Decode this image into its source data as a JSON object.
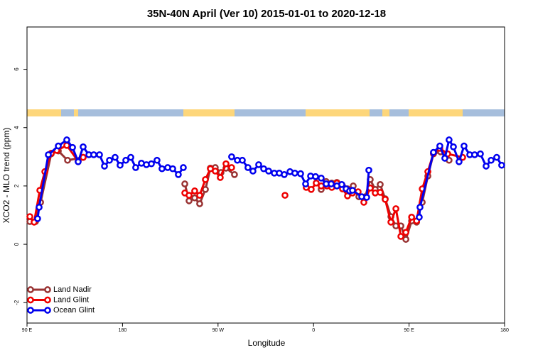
{
  "chart_data": {
    "type": "line",
    "title": "35N-40N April (Ver 10)   2015-01-01 to 2020-12-18",
    "x_label": "Longitude",
    "y_label": "XCO2 - MLO trend (ppm)",
    "xlim": [
      90,
      540
    ],
    "ylim": [
      -2.7,
      7.45
    ],
    "xticks": [
      {
        "value": 90,
        "label": "90 E"
      },
      180,
      {
        "value": 270,
        "label": "90 W"
      },
      {
        "value": 360,
        "label": "0"
      },
      {
        "value": 450,
        "label": "90 E"
      },
      {
        "value": 540,
        "label": "180"
      }
    ],
    "yticks": [
      -2,
      0,
      2,
      4,
      6
    ],
    "legend": "bottomleft",
    "series": [
      {
        "name": "Land Nadir",
        "color": "#993333",
        "x": [
          92.7,
          98.0,
          102.8,
          112.8,
          119.5,
          128.2,
          142.9,
          null,
          238.7,
          242.7,
          248.0,
          252.7,
          258.1,
          262.8,
          267.4,
          272.8,
          277.5,
          285.5,
          null,
          367.2,
          371.9,
          377.2,
          382.0,
          387.3,
          392.0,
          397.4,
          402.7,
          408.7,
          413.4,
          418.1,
          422.8,
          427.5,
          432.9,
          437.6,
          442.3,
          447.0,
          452.4,
          457.1,
          462.4,
          467.7,
          473.0,
          479.7,
          487.7
        ],
        "values": [
          0.78,
          0.78,
          1.44,
          3.1,
          3.2,
          2.88,
          2.98,
          null,
          2.07,
          1.49,
          1.59,
          1.39,
          1.88,
          2.61,
          2.63,
          2.46,
          2.61,
          2.39,
          null,
          1.88,
          2.15,
          2.1,
          2.12,
          2.0,
          1.9,
          2.0,
          1.63,
          1.63,
          2.22,
          1.88,
          2.05,
          1.56,
          0.95,
          0.63,
          0.63,
          0.17,
          0.8,
          0.76,
          1.44,
          2.34,
          3.1,
          3.17,
          2.88
        ]
      },
      {
        "name": "Land Glint",
        "color": "#ee0000",
        "x": [
          92.7,
          96.7,
          102.1,
          106.8,
          112.8,
          118.1,
          127.5,
          138.2,
          142.9,
          null,
          238.7,
          242.7,
          248.0,
          252.7,
          258.1,
          262.8,
          267.4,
          272.1,
          277.5,
          282.8,
          null,
          333.1,
          null,
          353.1,
          357.8,
          362.5,
          367.2,
          372.6,
          377.2,
          382.0,
          387.3,
          392.0,
          396.7,
          402.0,
          407.4,
          413.4,
          418.1,
          422.8,
          427.5,
          432.9,
          437.6,
          442.3,
          447.0,
          452.4,
          457.1,
          462.4,
          467.7,
          473.0,
          479.0,
          486.4,
          500.5
        ],
        "values": [
          0.95,
          0.76,
          1.85,
          2.49,
          3.12,
          3.22,
          3.39,
          2.85,
          2.98,
          null,
          1.76,
          1.68,
          1.83,
          1.68,
          2.22,
          2.59,
          2.51,
          2.29,
          2.76,
          2.63,
          null,
          1.68,
          null,
          1.95,
          1.88,
          2.1,
          2.0,
          2.0,
          1.95,
          2.1,
          1.9,
          1.66,
          1.76,
          1.8,
          1.44,
          1.93,
          1.76,
          1.78,
          1.54,
          0.76,
          1.22,
          0.27,
          0.41,
          0.93,
          0.8,
          1.9,
          2.49,
          3.12,
          3.29,
          3.1,
          2.98
        ]
      },
      {
        "name": "Ocean Glint",
        "color": "#0000ee",
        "x": [
          100.0,
          101.4,
          110.1,
          119.5,
          127.5,
          132.9,
          138.2,
          142.9,
          148.3,
          152.9,
          158.3,
          163.0,
          167.7,
          173.0,
          177.7,
          183.1,
          187.8,
          192.4,
          197.8,
          202.5,
          207.2,
          212.5,
          217.2,
          222.6,
          227.3,
          232.6,
          237.3,
          null,
          282.8,
          288.2,
          292.9,
          298.2,
          302.9,
          308.3,
          313.0,
          317.7,
          323.0,
          327.7,
          332.4,
          337.8,
          342.4,
          347.8,
          352.5,
          357.2,
          361.9,
          367.2,
          371.9,
          376.6,
          382.0,
          386.6,
          390.7,
          394.0,
          396.7,
          405.4,
          410.1,
          412.1,
          null,
          459.6,
          460.3,
          473.0,
          479.0,
          483.7,
          487.7,
          491.8,
          497.1,
          501.8,
          507.2,
          511.8,
          517.2,
          522.6,
          527.3,
          532.6,
          537.3
        ],
        "values": [
          0.88,
          1.27,
          3.07,
          3.37,
          3.58,
          3.32,
          2.83,
          3.34,
          3.07,
          3.07,
          3.07,
          2.68,
          2.88,
          2.98,
          2.71,
          2.88,
          2.98,
          2.63,
          2.78,
          2.73,
          2.76,
          2.88,
          2.59,
          2.63,
          2.59,
          2.39,
          2.63,
          null,
          3.0,
          2.88,
          2.88,
          2.63,
          2.51,
          2.73,
          2.59,
          2.51,
          2.44,
          2.44,
          2.39,
          2.49,
          2.44,
          2.42,
          2.07,
          2.34,
          2.32,
          2.27,
          2.07,
          2.07,
          2.0,
          2.05,
          1.9,
          1.83,
          1.85,
          1.63,
          1.61,
          2.54,
          null,
          0.93,
          1.27,
          3.15,
          3.37,
          2.95,
          3.58,
          3.34,
          2.83,
          3.37,
          3.07,
          3.07,
          3.1,
          2.68,
          2.88,
          2.98,
          2.71
        ]
      }
    ]
  }
}
